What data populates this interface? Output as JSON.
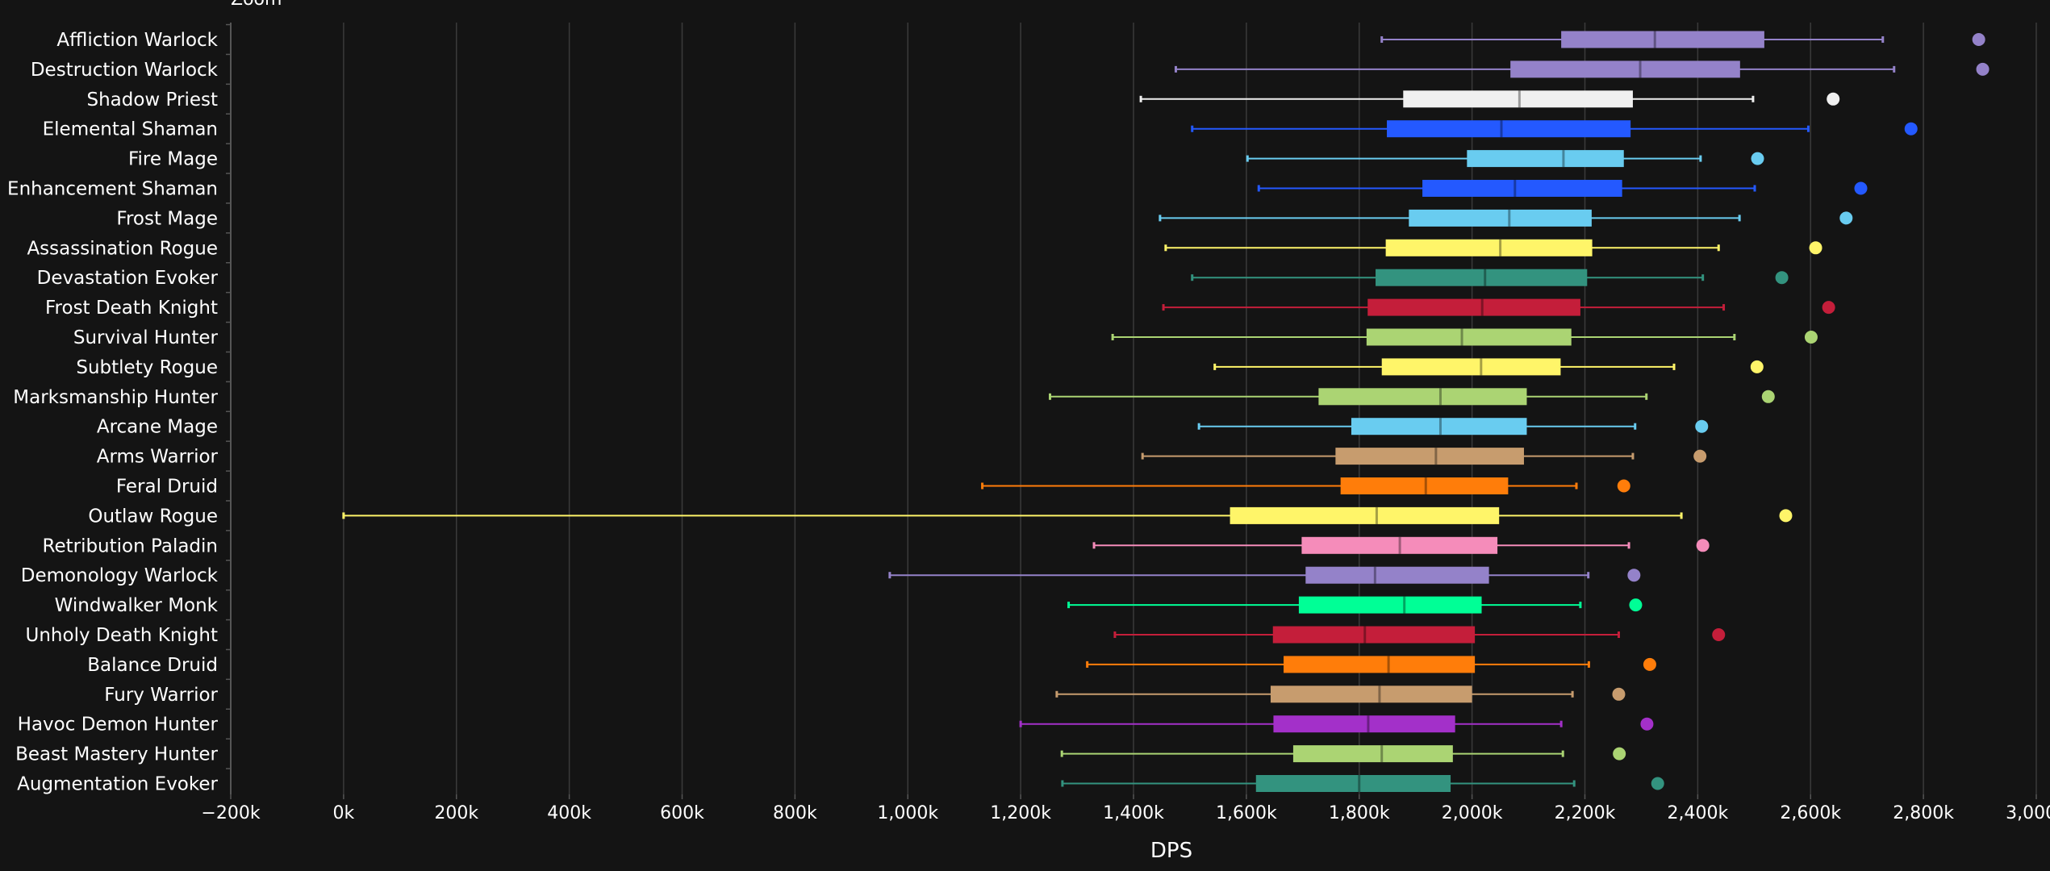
{
  "chart_data": {
    "type": "box",
    "title_fragment": "Zoom",
    "xlabel": "DPS",
    "ylabel": "",
    "xlim": [
      -200000,
      3000000
    ],
    "x_ticks": [
      -200000,
      0,
      200000,
      400000,
      600000,
      800000,
      1000000,
      1200000,
      1400000,
      1600000,
      1800000,
      2000000,
      2200000,
      2400000,
      2600000,
      2800000,
      3000000
    ],
    "x_tick_labels": [
      "−200k",
      "0k",
      "200k",
      "400k",
      "600k",
      "800k",
      "1,000k",
      "1,200k",
      "1,400k",
      "1,600k",
      "1,800k",
      "2,000k",
      "2,200k",
      "2,400k",
      "2,600k",
      "2,800k",
      "3,000k"
    ],
    "grid": "vertical",
    "series": [
      {
        "name": "Affliction Warlock",
        "color": "#9482C9",
        "min": 1840000,
        "q1": 2158000,
        "median": 2324000,
        "q3": 2518000,
        "max": 2728000,
        "outlier": 2898000
      },
      {
        "name": "Destruction Warlock",
        "color": "#9482C9",
        "min": 1475000,
        "q1": 2068000,
        "median": 2298000,
        "q3": 2475000,
        "max": 2748000,
        "outlier": 2905000
      },
      {
        "name": "Shadow Priest",
        "color": "#F0F0F0",
        "min": 1413000,
        "q1": 1878000,
        "median": 2084000,
        "q3": 2285000,
        "max": 2498000,
        "outlier": 2640000
      },
      {
        "name": "Elemental Shaman",
        "color": "#2459FF",
        "min": 1504000,
        "q1": 1849000,
        "median": 2052000,
        "q3": 2281000,
        "max": 2596000,
        "outlier": 2778000
      },
      {
        "name": "Fire Mage",
        "color": "#69CCF0",
        "min": 1602000,
        "q1": 1991000,
        "median": 2162000,
        "q3": 2269000,
        "max": 2405000,
        "outlier": 2506000
      },
      {
        "name": "Enhancement Shaman",
        "color": "#2459FF",
        "min": 1622000,
        "q1": 1912000,
        "median": 2076000,
        "q3": 2266000,
        "max": 2501000,
        "outlier": 2689000
      },
      {
        "name": "Frost Mage",
        "color": "#69CCF0",
        "min": 1447000,
        "q1": 1888000,
        "median": 2066000,
        "q3": 2212000,
        "max": 2474000,
        "outlier": 2663000
      },
      {
        "name": "Assassination Rogue",
        "color": "#FFF569",
        "min": 1457000,
        "q1": 1847000,
        "median": 2050000,
        "q3": 2213000,
        "max": 2437000,
        "outlier": 2609000
      },
      {
        "name": "Devastation Evoker",
        "color": "#33937F",
        "min": 1504000,
        "q1": 1829000,
        "median": 2023000,
        "q3": 2204000,
        "max": 2409000,
        "outlier": 2549000
      },
      {
        "name": "Frost Death Knight",
        "color": "#C41E3A",
        "min": 1453000,
        "q1": 1815000,
        "median": 2018000,
        "q3": 2192000,
        "max": 2446000,
        "outlier": 2632000
      },
      {
        "name": "Survival Hunter",
        "color": "#ABD473",
        "min": 1363000,
        "q1": 1813000,
        "median": 1982000,
        "q3": 2176000,
        "max": 2465000,
        "outlier": 2601000
      },
      {
        "name": "Subtlety Rogue",
        "color": "#FFF569",
        "min": 1544000,
        "q1": 1840000,
        "median": 2016000,
        "q3": 2157000,
        "max": 2358000,
        "outlier": 2505000
      },
      {
        "name": "Marksmanship Hunter",
        "color": "#ABD473",
        "min": 1252000,
        "q1": 1728000,
        "median": 1944000,
        "q3": 2097000,
        "max": 2309000,
        "outlier": 2525000
      },
      {
        "name": "Arcane Mage",
        "color": "#69CCF0",
        "min": 1516000,
        "q1": 1786000,
        "median": 1944000,
        "q3": 2097000,
        "max": 2289000,
        "outlier": 2407000
      },
      {
        "name": "Arms Warrior",
        "color": "#C79C6E",
        "min": 1416000,
        "q1": 1758000,
        "median": 1936000,
        "q3": 2092000,
        "max": 2285000,
        "outlier": 2404000
      },
      {
        "name": "Feral Druid",
        "color": "#FF7D0A",
        "min": 1132000,
        "q1": 1767000,
        "median": 1918000,
        "q3": 2064000,
        "max": 2185000,
        "outlier": 2269000
      },
      {
        "name": "Outlaw Rogue",
        "color": "#FFF569",
        "min": 0,
        "q1": 1571000,
        "median": 1831000,
        "q3": 2048000,
        "max": 2371000,
        "outlier": 2556000
      },
      {
        "name": "Retribution Paladin",
        "color": "#F58CBA",
        "min": 1330000,
        "q1": 1698000,
        "median": 1872000,
        "q3": 2045000,
        "max": 2278000,
        "outlier": 2409000
      },
      {
        "name": "Demonology Warlock",
        "color": "#9482C9",
        "min": 968000,
        "q1": 1705000,
        "median": 1828000,
        "q3": 2030000,
        "max": 2206000,
        "outlier": 2287000
      },
      {
        "name": "Windwalker Monk",
        "color": "#00FF96",
        "min": 1285000,
        "q1": 1693000,
        "median": 1880000,
        "q3": 2017000,
        "max": 2192000,
        "outlier": 2290000
      },
      {
        "name": "Unholy Death Knight",
        "color": "#C41E3A",
        "min": 1367000,
        "q1": 1647000,
        "median": 1810000,
        "q3": 2005000,
        "max": 2260000,
        "outlier": 2437000
      },
      {
        "name": "Balance Druid",
        "color": "#FF7D0A",
        "min": 1318000,
        "q1": 1666000,
        "median": 1852000,
        "q3": 2005000,
        "max": 2207000,
        "outlier": 2315000
      },
      {
        "name": "Fury Warrior",
        "color": "#C79C6E",
        "min": 1264000,
        "q1": 1643000,
        "median": 1836000,
        "q3": 2000000,
        "max": 2178000,
        "outlier": 2260000
      },
      {
        "name": "Havoc Demon Hunter",
        "color": "#A330C9",
        "min": 1200000,
        "q1": 1648000,
        "median": 1816000,
        "q3": 1970000,
        "max": 2158000,
        "outlier": 2310000
      },
      {
        "name": "Beast Mastery Hunter",
        "color": "#ABD473",
        "min": 1273000,
        "q1": 1683000,
        "median": 1840000,
        "q3": 1966000,
        "max": 2161000,
        "outlier": 2261000
      },
      {
        "name": "Augmentation Evoker",
        "color": "#33937F",
        "min": 1274000,
        "q1": 1617000,
        "median": 1800000,
        "q3": 1962000,
        "max": 2181000,
        "outlier": 2329000
      }
    ]
  },
  "colors": {
    "background": "#141414",
    "grid": "#3a3a3a",
    "axis": "#555555",
    "text": "#ffffff"
  }
}
